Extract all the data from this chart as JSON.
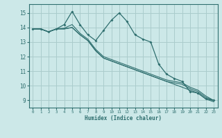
{
  "background_color": "#cce8e8",
  "grid_color": "#aacccc",
  "line_color": "#2e6e6e",
  "xlabel": "Humidex (Indice chaleur)",
  "ylim": [
    8.5,
    15.6
  ],
  "xlim": [
    -0.5,
    23.5
  ],
  "yticks": [
    9,
    10,
    11,
    12,
    13,
    14,
    15
  ],
  "xticks": [
    0,
    1,
    2,
    3,
    4,
    5,
    6,
    7,
    8,
    9,
    10,
    11,
    12,
    13,
    14,
    15,
    16,
    17,
    18,
    19,
    20,
    21,
    22,
    23
  ],
  "series": [
    [
      13.9,
      13.9,
      13.7,
      13.9,
      14.2,
      15.1,
      14.2,
      13.5,
      13.1,
      13.8,
      14.5,
      15.0,
      14.4,
      13.5,
      13.2,
      13.0,
      11.5,
      10.8,
      10.5,
      10.3,
      9.6,
      9.5,
      9.1,
      9.0
    ],
    [
      13.9,
      13.9,
      13.7,
      13.9,
      13.95,
      14.2,
      13.6,
      13.2,
      12.5,
      12.0,
      11.8,
      11.6,
      11.4,
      11.2,
      11.0,
      10.8,
      10.6,
      10.4,
      10.3,
      10.2,
      9.9,
      9.7,
      9.3,
      9.0
    ],
    [
      13.9,
      13.9,
      13.7,
      13.9,
      13.9,
      14.0,
      13.5,
      13.1,
      12.4,
      11.9,
      11.7,
      11.5,
      11.3,
      11.1,
      10.9,
      10.7,
      10.5,
      10.3,
      10.2,
      10.1,
      9.8,
      9.6,
      9.2,
      9.0
    ],
    [
      13.9,
      13.9,
      13.7,
      13.9,
      13.9,
      14.0,
      13.5,
      13.1,
      12.4,
      11.9,
      11.7,
      11.5,
      11.3,
      11.1,
      10.9,
      10.7,
      10.5,
      10.3,
      10.1,
      9.9,
      9.7,
      9.5,
      9.1,
      8.9
    ]
  ]
}
